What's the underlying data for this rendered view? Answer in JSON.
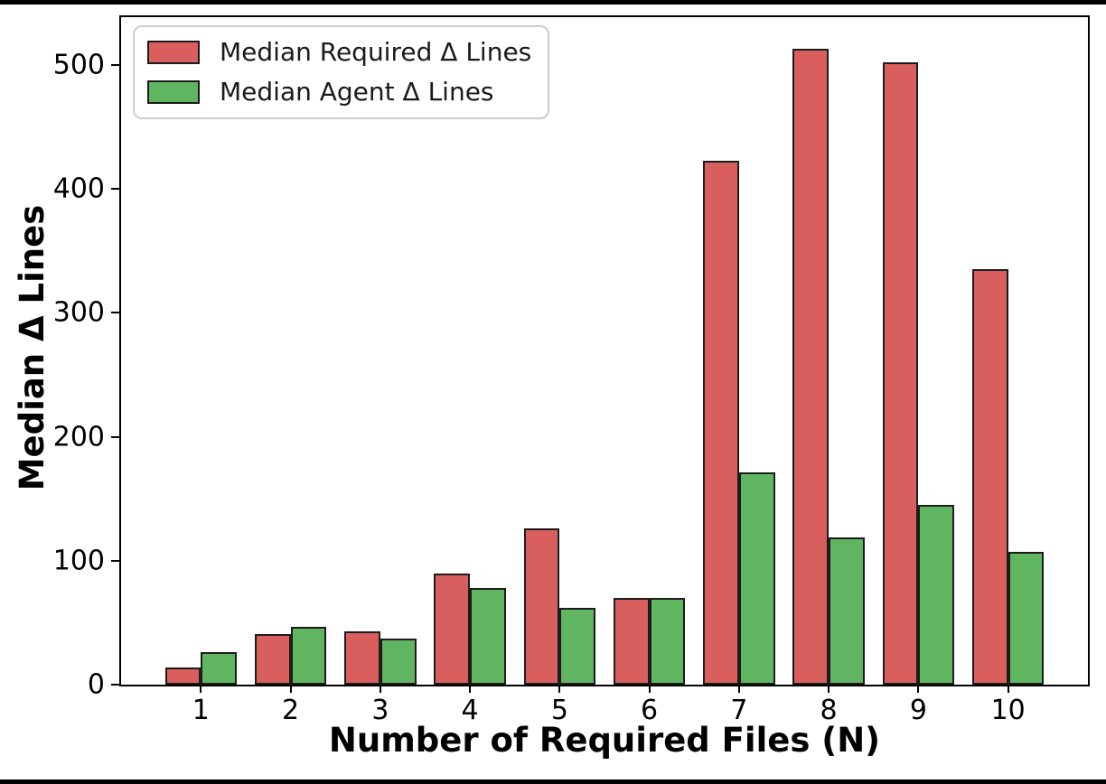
{
  "frame": {
    "background": "#ffffff",
    "border_color": "#000000"
  },
  "chart_data": {
    "type": "bar",
    "title": "",
    "xlabel": "Number of Required Files (N)",
    "ylabel": "Median Δ Lines",
    "categories": [
      "1",
      "2",
      "3",
      "4",
      "5",
      "6",
      "7",
      "8",
      "9",
      "10"
    ],
    "series": [
      {
        "name": "Median Required Δ Lines",
        "color": "#d95f5e",
        "values": [
          14,
          41,
          43,
          90,
          126,
          70,
          423,
          513,
          502,
          335
        ]
      },
      {
        "name": "Median Agent Δ Lines",
        "color": "#60b561",
        "values": [
          26,
          47,
          37,
          78,
          62,
          70,
          171,
          119,
          145,
          107
        ]
      }
    ],
    "yticks": [
      0,
      100,
      200,
      300,
      400,
      500
    ],
    "ylim": [
      0,
      538.65
    ],
    "bar_edge_color": "#1c1c1c",
    "legend_position": "upper left",
    "grid": false
  }
}
